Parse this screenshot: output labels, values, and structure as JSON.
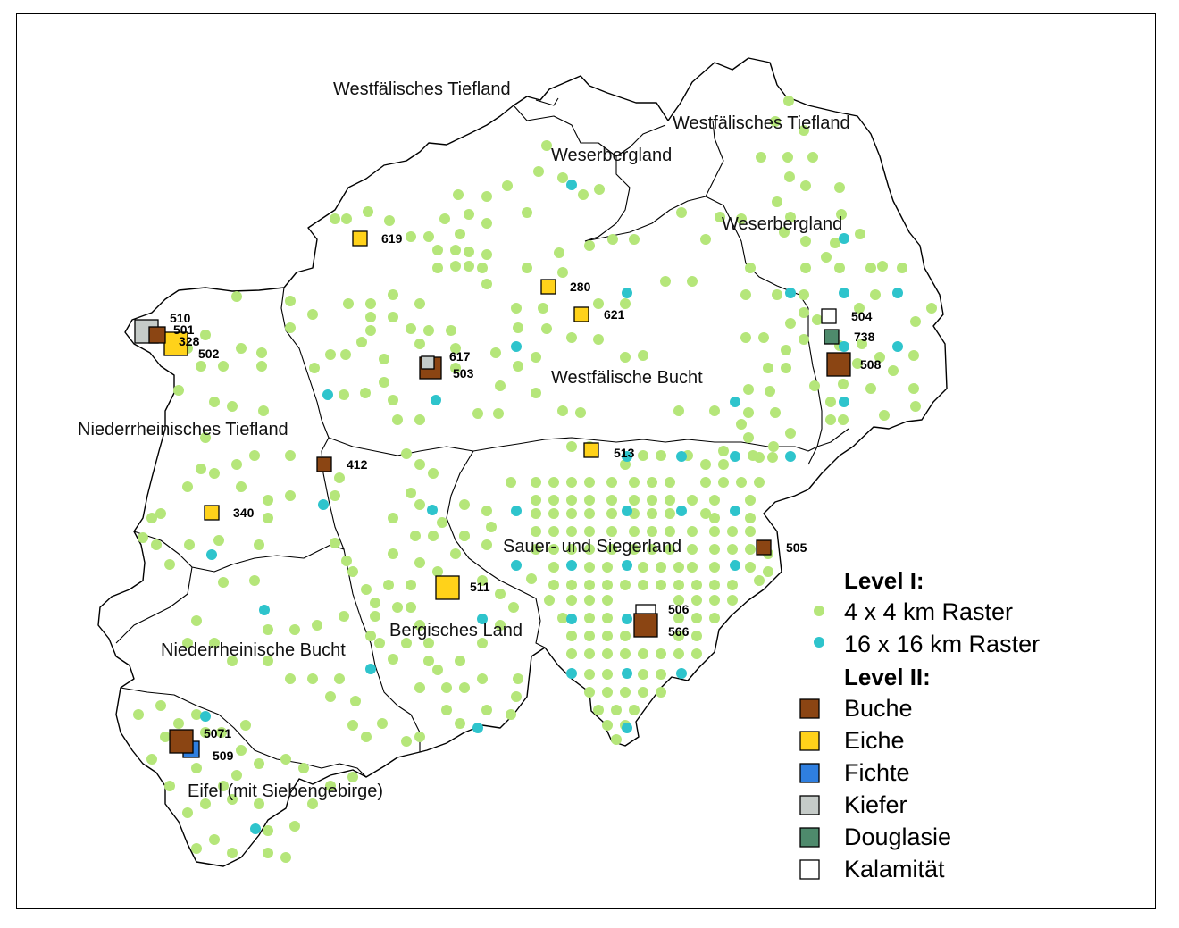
{
  "map": {
    "regions": [
      {
        "name": "Westfälisches Tiefland",
        "key": "westf-tiefland-west"
      },
      {
        "name": "Westfälisches Tiefland",
        "key": "westf-tiefland-east"
      },
      {
        "name": "Weserbergland",
        "key": "weserbergland-west"
      },
      {
        "name": "Weserbergland",
        "key": "weserbergland-east"
      },
      {
        "name": "Westfälische Bucht",
        "key": "westf-bucht"
      },
      {
        "name": "Niederrheinisches Tiefland",
        "key": "niederrh-tiefland"
      },
      {
        "name": "Sauer- und Siegerland",
        "key": "sauerland"
      },
      {
        "name": "Bergisches Land",
        "key": "bergisches-land"
      },
      {
        "name": "Niederrheinische Bucht",
        "key": "niederrh-bucht"
      },
      {
        "name": "Eifel (mit Siebengebirge)",
        "key": "eifel"
      }
    ],
    "level2_sites": [
      {
        "id": "510",
        "type": "Kiefer"
      },
      {
        "id": "501",
        "type": "Buche"
      },
      {
        "id": "328",
        "type": "Eiche"
      },
      {
        "id": "502",
        "type": "Eiche"
      },
      {
        "id": "619",
        "type": "Eiche"
      },
      {
        "id": "280",
        "type": "Eiche"
      },
      {
        "id": "621",
        "type": "Eiche"
      },
      {
        "id": "617",
        "type": "Kiefer"
      },
      {
        "id": "503",
        "type": "Buche"
      },
      {
        "id": "504",
        "type": "Kalamität"
      },
      {
        "id": "738",
        "type": "Douglasie"
      },
      {
        "id": "508",
        "type": "Buche"
      },
      {
        "id": "412",
        "type": "Buche"
      },
      {
        "id": "513",
        "type": "Eiche"
      },
      {
        "id": "340",
        "type": "Eiche"
      },
      {
        "id": "505",
        "type": "Buche"
      },
      {
        "id": "511",
        "type": "Eiche"
      },
      {
        "id": "506",
        "type": "Kalamität"
      },
      {
        "id": "566",
        "type": "Buche"
      },
      {
        "id": "5071",
        "type": "Buche"
      },
      {
        "id": "509",
        "type": "Fichte"
      }
    ]
  },
  "legend": {
    "level1_heading": "Level I:",
    "level1_items": [
      {
        "label": "4 x 4 km Raster",
        "color": "#b5e67a"
      },
      {
        "label": "16 x 16 km Raster",
        "color": "#2ec4cc"
      }
    ],
    "level2_heading": "Level II:",
    "level2_items": [
      {
        "label": "Buche",
        "color": "#8b4513"
      },
      {
        "label": "Eiche",
        "color": "#ffd21a"
      },
      {
        "label": "Fichte",
        "color": "#2f7fe0"
      },
      {
        "label": "Kiefer",
        "color": "#c5cbc8"
      },
      {
        "label": "Douglasie",
        "color": "#4e8a6c"
      },
      {
        "label": "Kalamität",
        "color": "#ffffff"
      }
    ]
  }
}
